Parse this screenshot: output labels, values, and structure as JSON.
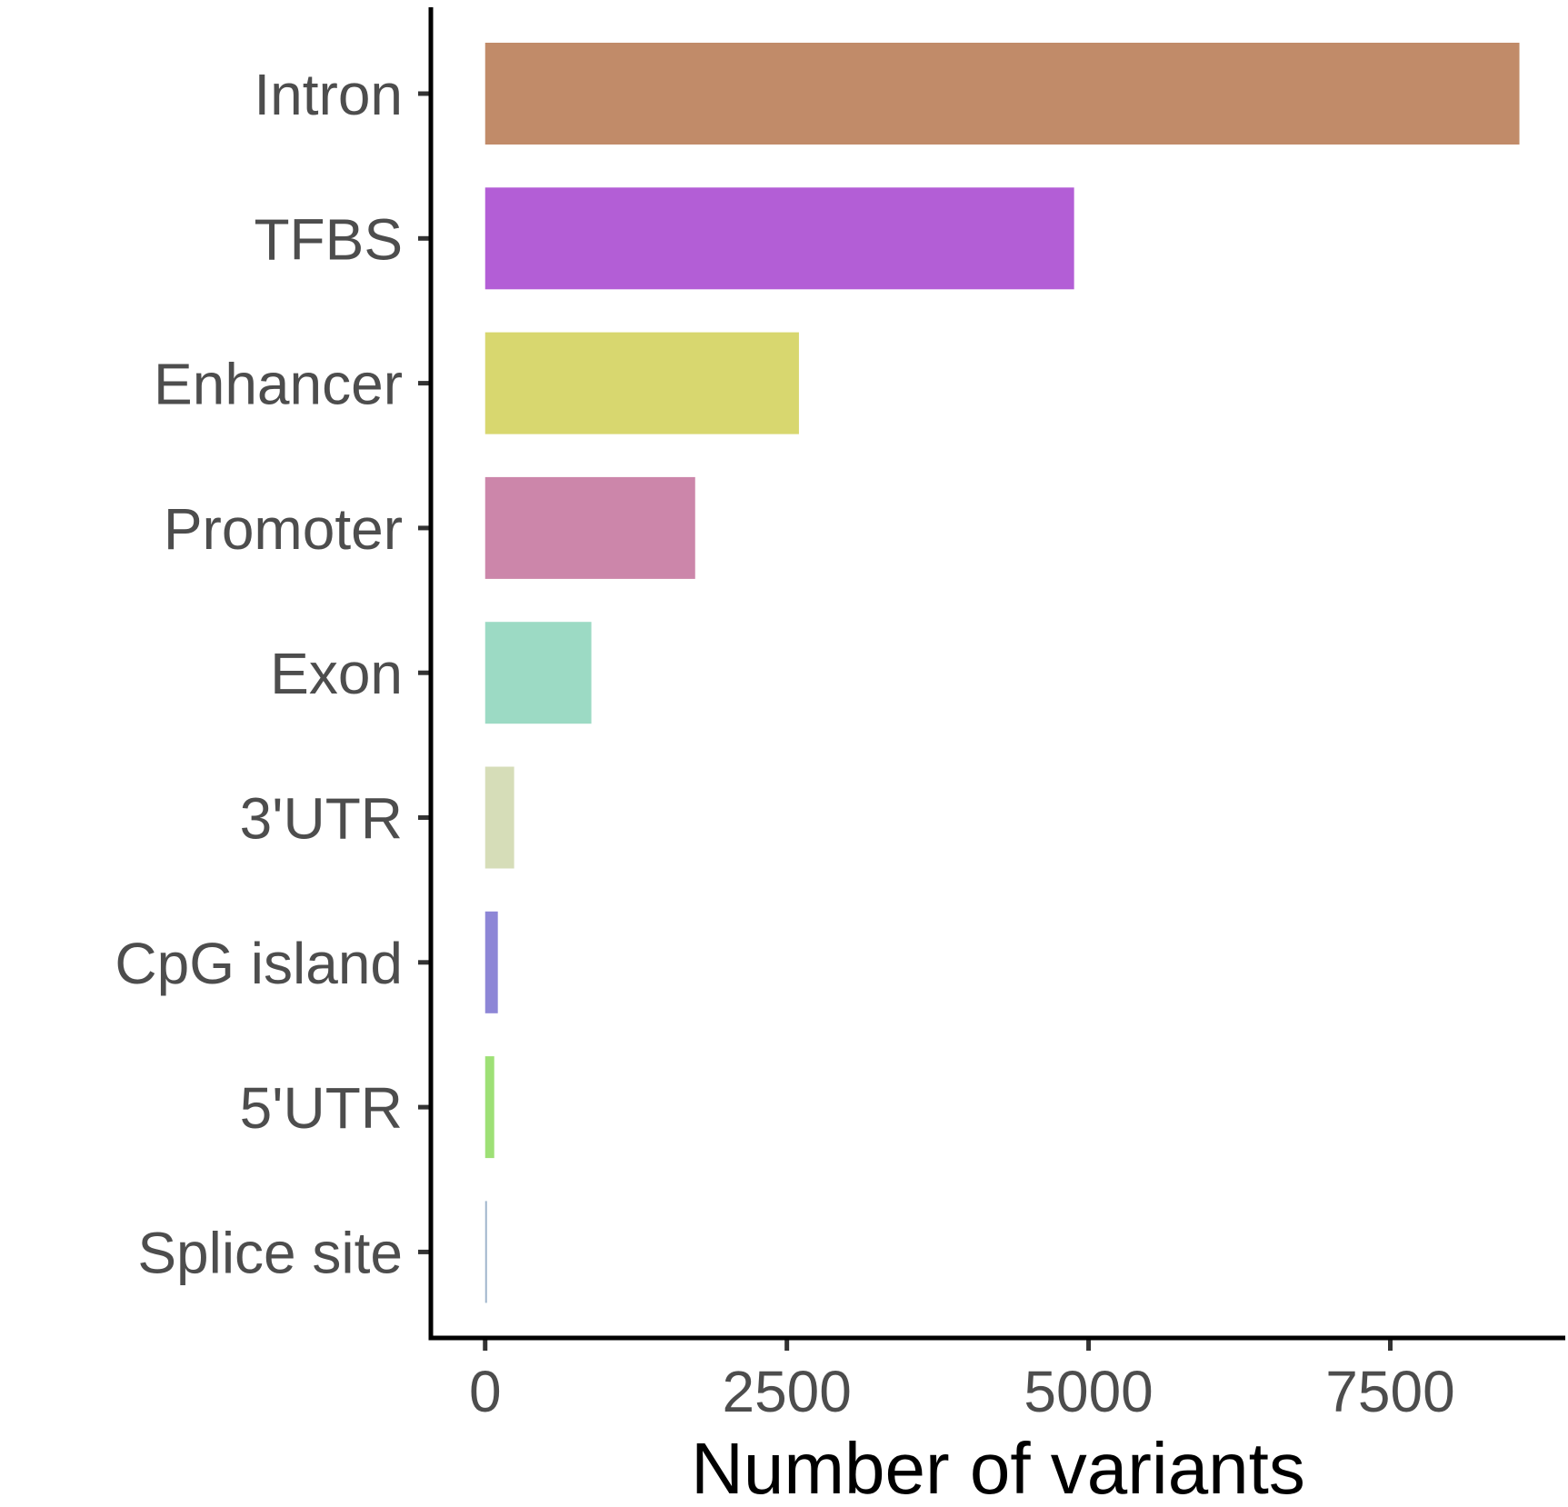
{
  "chart_data": {
    "type": "bar",
    "orientation": "horizontal",
    "categories": [
      "Intron",
      "TFBS",
      "Enhancer",
      "Promoter",
      "Exon",
      "3'UTR",
      "CpG island",
      "5'UTR",
      "Splice site"
    ],
    "values": [
      8570,
      4880,
      2600,
      1740,
      880,
      240,
      105,
      75,
      10
    ],
    "colors": [
      "#c18b69",
      "#b35ed6",
      "#d8d76f",
      "#cc86aa",
      "#9cdac4",
      "#d6ddb8",
      "#8d86d6",
      "#9ee076",
      "#a0b6cc"
    ],
    "xlabel": "Number of variants",
    "ylabel": "",
    "xlim": [
      -450,
      8950
    ],
    "xticks": [
      0,
      2500,
      5000,
      7500
    ],
    "xtick_labels": [
      "0",
      "2500",
      "5000",
      "7500"
    ],
    "grid": false,
    "legend": "none"
  }
}
